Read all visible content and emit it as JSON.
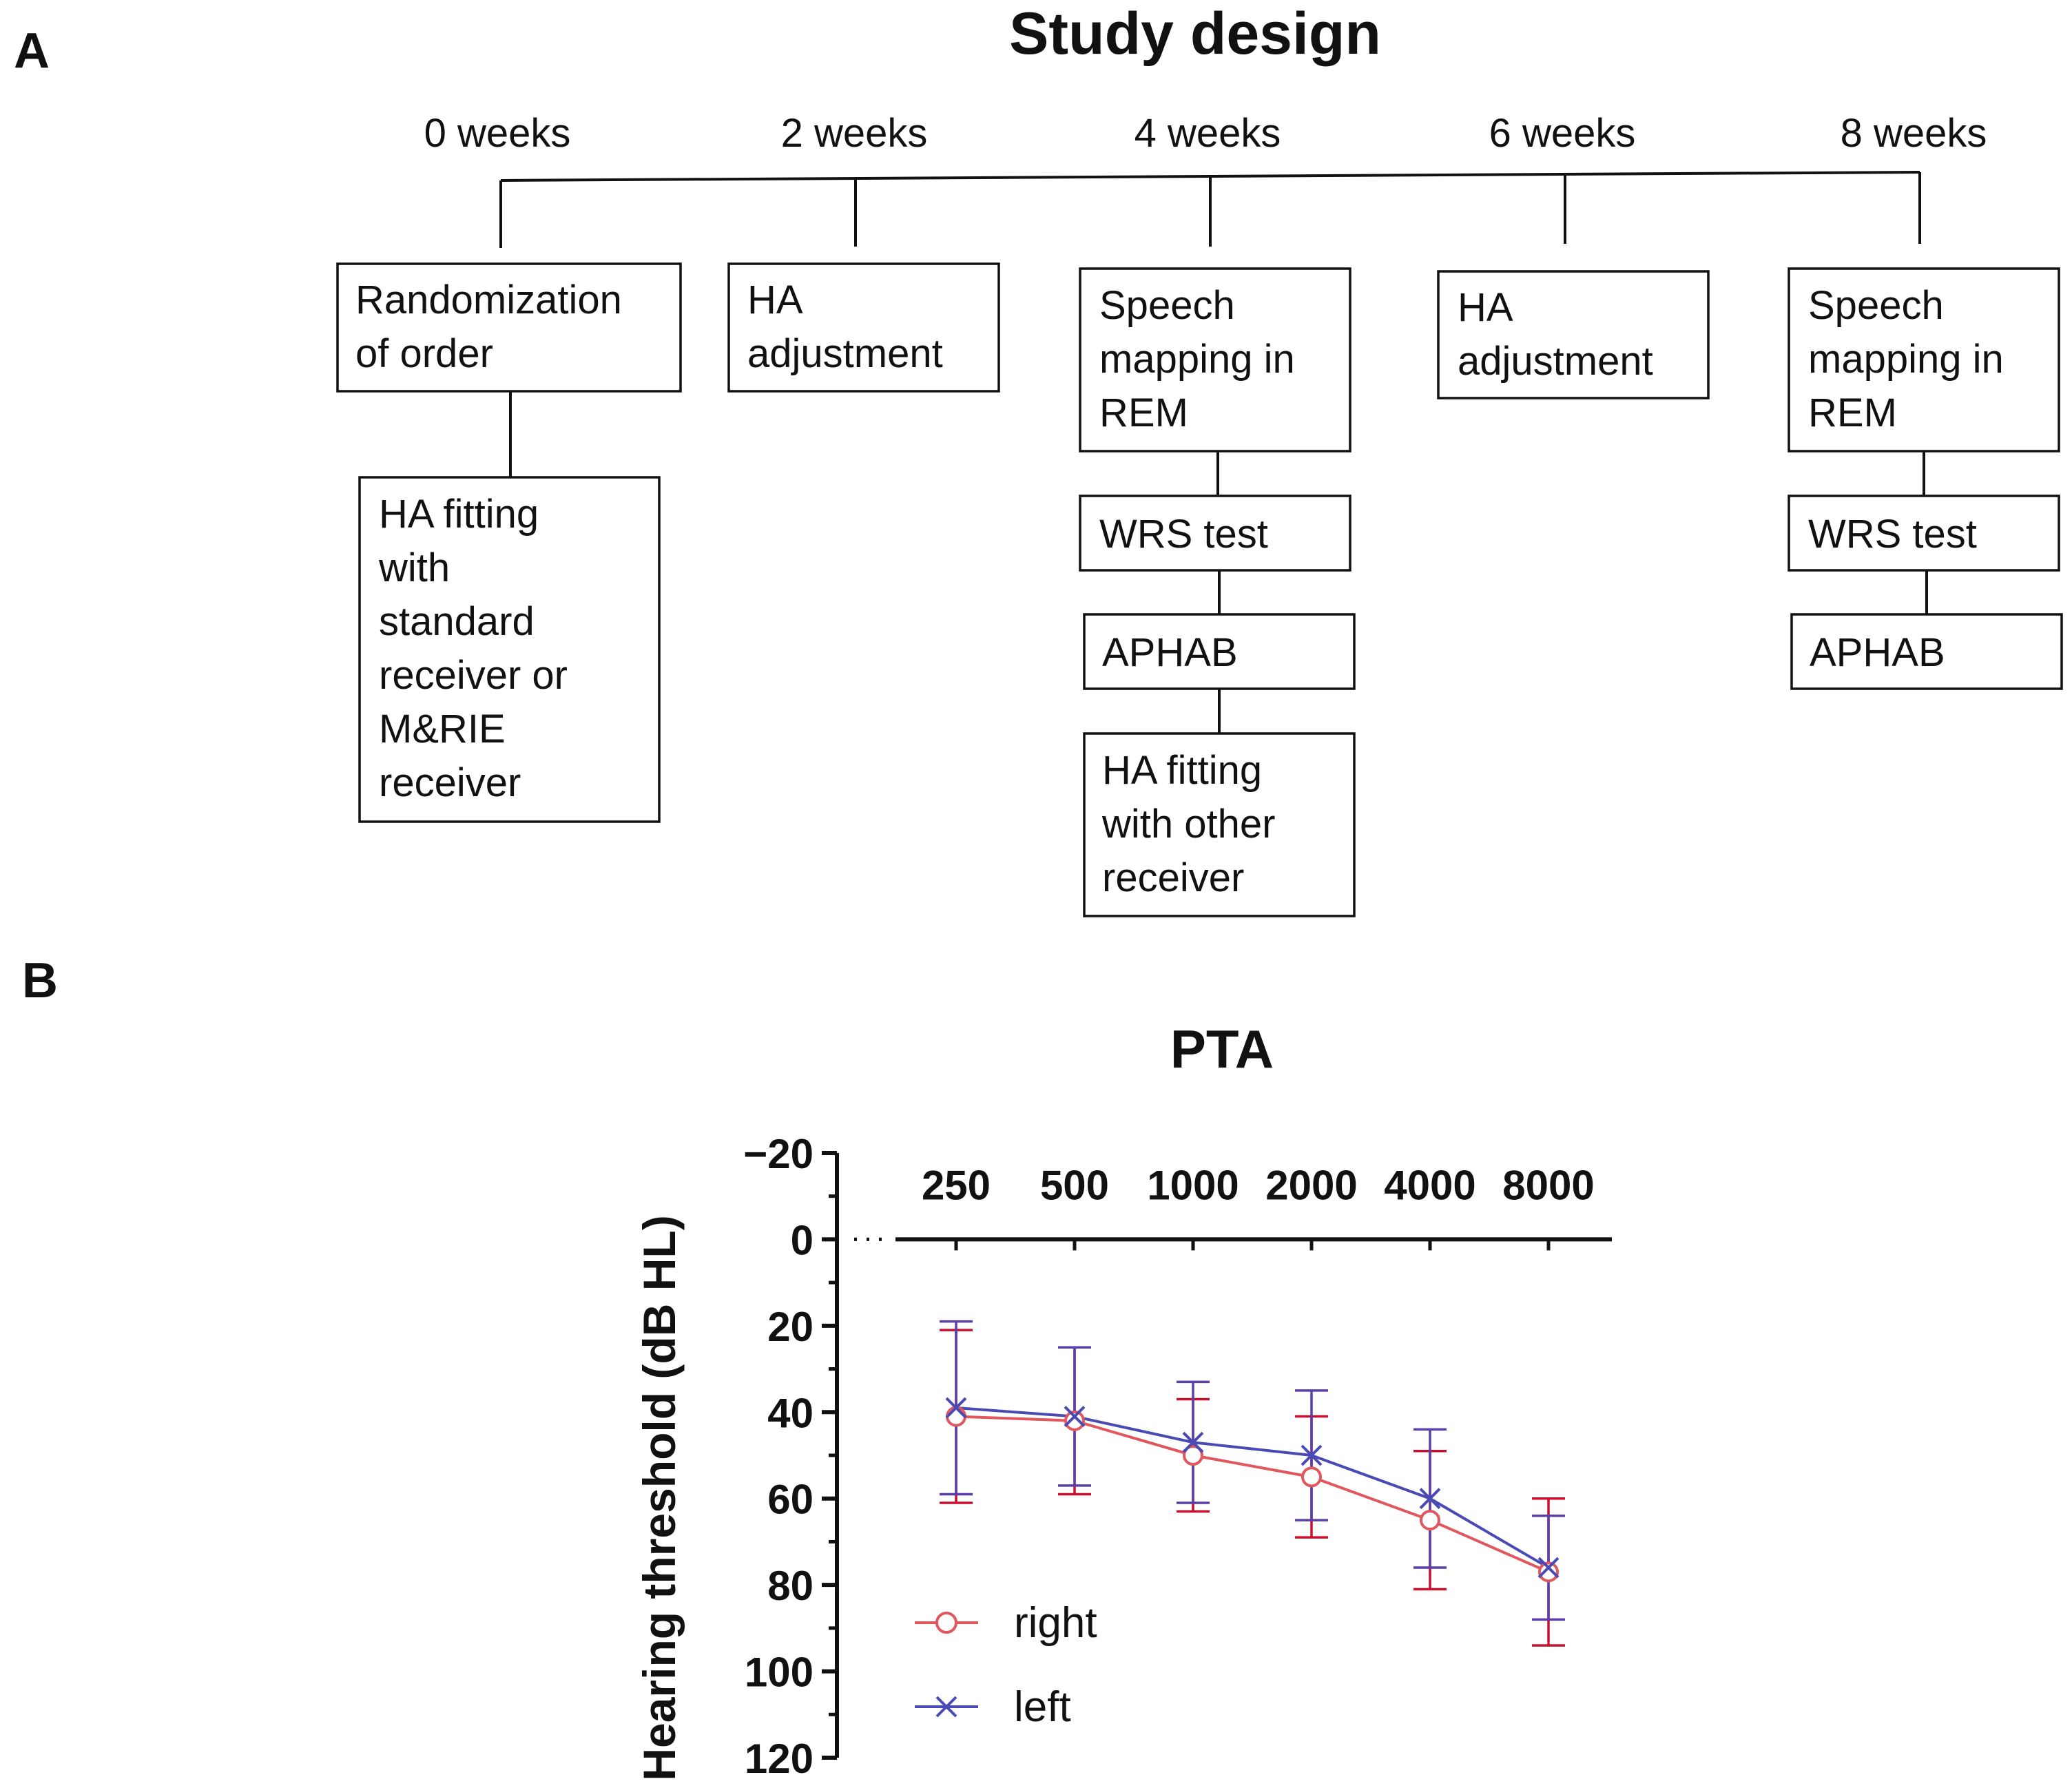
{
  "panel_a": {
    "label": "A",
    "title": "Study design",
    "timepoints": [
      "0 weeks",
      "2 weeks",
      "4 weeks",
      "6 weeks",
      "8 weeks"
    ],
    "boxes": {
      "w0_main": [
        "Randomization",
        "of order"
      ],
      "w0_sub": [
        "HA fitting",
        "with",
        "standard",
        "receiver or",
        "M&RIE",
        "receiver"
      ],
      "w2_main": [
        "HA",
        "adjustment"
      ],
      "w4_main": [
        "Speech",
        "mapping in",
        "REM"
      ],
      "w4_wrs": [
        "WRS test"
      ],
      "w4_aphab": [
        "APHAB"
      ],
      "w4_fit": [
        "HA fitting",
        "with other",
        "receiver"
      ],
      "w6_main": [
        "HA",
        "adjustment"
      ],
      "w8_main": [
        "Speech",
        "mapping in",
        "REM"
      ],
      "w8_wrs": [
        "WRS test"
      ],
      "w8_aphab": [
        "APHAB"
      ]
    }
  },
  "panel_b": {
    "label": "B"
  },
  "colors": {
    "right": "#e0575d",
    "left": "#4a4ab4",
    "right_err": "#c8102e",
    "left_err": "#5a3fa8",
    "ink": "#111111"
  },
  "chart_data": {
    "type": "line",
    "title": "PTA",
    "xlabel": "",
    "ylabel": "Hearing threshold (dB  HL)",
    "categories": [
      "250",
      "500",
      "1000",
      "2000",
      "4000",
      "8000"
    ],
    "ylim": [
      -20,
      120
    ],
    "yticks": [
      "−20",
      "0",
      "20",
      "40",
      "60",
      "80",
      "100",
      "120"
    ],
    "y_inverted": true,
    "legend_position": "bottom-left",
    "series": [
      {
        "name": "right",
        "marker": "circle",
        "values": [
          41,
          42,
          50,
          55,
          65,
          77
        ],
        "err": [
          20,
          17,
          13,
          14,
          16,
          17
        ]
      },
      {
        "name": "left",
        "marker": "x",
        "values": [
          39,
          41,
          47,
          50,
          60,
          76
        ],
        "err": [
          20,
          16,
          14,
          15,
          16,
          12
        ]
      }
    ]
  }
}
